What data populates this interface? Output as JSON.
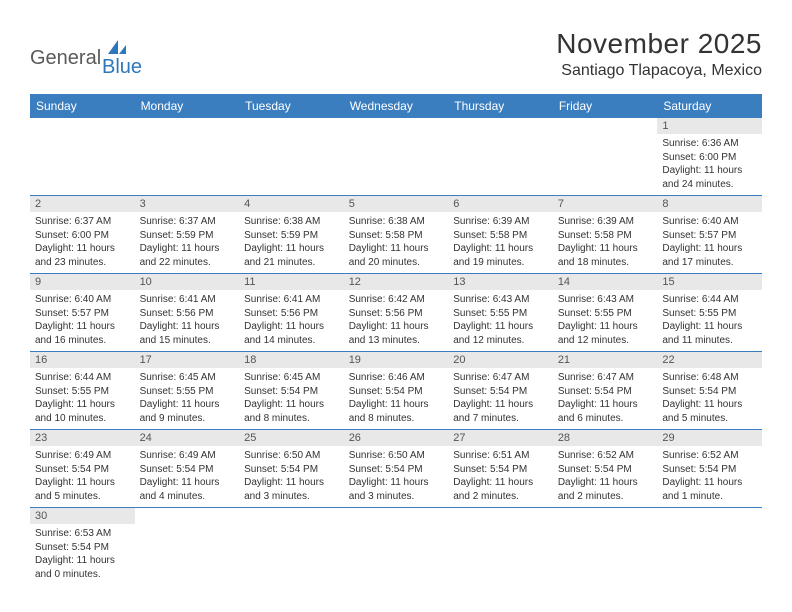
{
  "logo": {
    "text1": "General",
    "text2": "Blue"
  },
  "title": "November 2025",
  "location": "Santiago Tlapacoya, Mexico",
  "colors": {
    "header_bg": "#3a7ebf",
    "header_text": "#ffffff",
    "daynum_bg": "#e8e8e8",
    "daynum_text": "#555555",
    "cell_border": "#3a7ebf",
    "body_text": "#333333",
    "logo_gray": "#5a5a5a",
    "logo_blue": "#2f77bb",
    "background": "#ffffff"
  },
  "typography": {
    "title_fontsize": 28,
    "location_fontsize": 16,
    "dayheader_fontsize": 12,
    "daynum_fontsize": 11,
    "cell_fontsize": 10,
    "logo_fontsize": 20
  },
  "day_headers": [
    "Sunday",
    "Monday",
    "Tuesday",
    "Wednesday",
    "Thursday",
    "Friday",
    "Saturday"
  ],
  "weeks": [
    [
      {
        "empty": true
      },
      {
        "empty": true
      },
      {
        "empty": true
      },
      {
        "empty": true
      },
      {
        "empty": true
      },
      {
        "empty": true
      },
      {
        "day": "1",
        "sunrise": "Sunrise: 6:36 AM",
        "sunset": "Sunset: 6:00 PM",
        "daylight": "Daylight: 11 hours and 24 minutes."
      }
    ],
    [
      {
        "day": "2",
        "sunrise": "Sunrise: 6:37 AM",
        "sunset": "Sunset: 6:00 PM",
        "daylight": "Daylight: 11 hours and 23 minutes."
      },
      {
        "day": "3",
        "sunrise": "Sunrise: 6:37 AM",
        "sunset": "Sunset: 5:59 PM",
        "daylight": "Daylight: 11 hours and 22 minutes."
      },
      {
        "day": "4",
        "sunrise": "Sunrise: 6:38 AM",
        "sunset": "Sunset: 5:59 PM",
        "daylight": "Daylight: 11 hours and 21 minutes."
      },
      {
        "day": "5",
        "sunrise": "Sunrise: 6:38 AM",
        "sunset": "Sunset: 5:58 PM",
        "daylight": "Daylight: 11 hours and 20 minutes."
      },
      {
        "day": "6",
        "sunrise": "Sunrise: 6:39 AM",
        "sunset": "Sunset: 5:58 PM",
        "daylight": "Daylight: 11 hours and 19 minutes."
      },
      {
        "day": "7",
        "sunrise": "Sunrise: 6:39 AM",
        "sunset": "Sunset: 5:58 PM",
        "daylight": "Daylight: 11 hours and 18 minutes."
      },
      {
        "day": "8",
        "sunrise": "Sunrise: 6:40 AM",
        "sunset": "Sunset: 5:57 PM",
        "daylight": "Daylight: 11 hours and 17 minutes."
      }
    ],
    [
      {
        "day": "9",
        "sunrise": "Sunrise: 6:40 AM",
        "sunset": "Sunset: 5:57 PM",
        "daylight": "Daylight: 11 hours and 16 minutes."
      },
      {
        "day": "10",
        "sunrise": "Sunrise: 6:41 AM",
        "sunset": "Sunset: 5:56 PM",
        "daylight": "Daylight: 11 hours and 15 minutes."
      },
      {
        "day": "11",
        "sunrise": "Sunrise: 6:41 AM",
        "sunset": "Sunset: 5:56 PM",
        "daylight": "Daylight: 11 hours and 14 minutes."
      },
      {
        "day": "12",
        "sunrise": "Sunrise: 6:42 AM",
        "sunset": "Sunset: 5:56 PM",
        "daylight": "Daylight: 11 hours and 13 minutes."
      },
      {
        "day": "13",
        "sunrise": "Sunrise: 6:43 AM",
        "sunset": "Sunset: 5:55 PM",
        "daylight": "Daylight: 11 hours and 12 minutes."
      },
      {
        "day": "14",
        "sunrise": "Sunrise: 6:43 AM",
        "sunset": "Sunset: 5:55 PM",
        "daylight": "Daylight: 11 hours and 12 minutes."
      },
      {
        "day": "15",
        "sunrise": "Sunrise: 6:44 AM",
        "sunset": "Sunset: 5:55 PM",
        "daylight": "Daylight: 11 hours and 11 minutes."
      }
    ],
    [
      {
        "day": "16",
        "sunrise": "Sunrise: 6:44 AM",
        "sunset": "Sunset: 5:55 PM",
        "daylight": "Daylight: 11 hours and 10 minutes."
      },
      {
        "day": "17",
        "sunrise": "Sunrise: 6:45 AM",
        "sunset": "Sunset: 5:55 PM",
        "daylight": "Daylight: 11 hours and 9 minutes."
      },
      {
        "day": "18",
        "sunrise": "Sunrise: 6:45 AM",
        "sunset": "Sunset: 5:54 PM",
        "daylight": "Daylight: 11 hours and 8 minutes."
      },
      {
        "day": "19",
        "sunrise": "Sunrise: 6:46 AM",
        "sunset": "Sunset: 5:54 PM",
        "daylight": "Daylight: 11 hours and 8 minutes."
      },
      {
        "day": "20",
        "sunrise": "Sunrise: 6:47 AM",
        "sunset": "Sunset: 5:54 PM",
        "daylight": "Daylight: 11 hours and 7 minutes."
      },
      {
        "day": "21",
        "sunrise": "Sunrise: 6:47 AM",
        "sunset": "Sunset: 5:54 PM",
        "daylight": "Daylight: 11 hours and 6 minutes."
      },
      {
        "day": "22",
        "sunrise": "Sunrise: 6:48 AM",
        "sunset": "Sunset: 5:54 PM",
        "daylight": "Daylight: 11 hours and 5 minutes."
      }
    ],
    [
      {
        "day": "23",
        "sunrise": "Sunrise: 6:49 AM",
        "sunset": "Sunset: 5:54 PM",
        "daylight": "Daylight: 11 hours and 5 minutes."
      },
      {
        "day": "24",
        "sunrise": "Sunrise: 6:49 AM",
        "sunset": "Sunset: 5:54 PM",
        "daylight": "Daylight: 11 hours and 4 minutes."
      },
      {
        "day": "25",
        "sunrise": "Sunrise: 6:50 AM",
        "sunset": "Sunset: 5:54 PM",
        "daylight": "Daylight: 11 hours and 3 minutes."
      },
      {
        "day": "26",
        "sunrise": "Sunrise: 6:50 AM",
        "sunset": "Sunset: 5:54 PM",
        "daylight": "Daylight: 11 hours and 3 minutes."
      },
      {
        "day": "27",
        "sunrise": "Sunrise: 6:51 AM",
        "sunset": "Sunset: 5:54 PM",
        "daylight": "Daylight: 11 hours and 2 minutes."
      },
      {
        "day": "28",
        "sunrise": "Sunrise: 6:52 AM",
        "sunset": "Sunset: 5:54 PM",
        "daylight": "Daylight: 11 hours and 2 minutes."
      },
      {
        "day": "29",
        "sunrise": "Sunrise: 6:52 AM",
        "sunset": "Sunset: 5:54 PM",
        "daylight": "Daylight: 11 hours and 1 minute."
      }
    ],
    [
      {
        "day": "30",
        "sunrise": "Sunrise: 6:53 AM",
        "sunset": "Sunset: 5:54 PM",
        "daylight": "Daylight: 11 hours and 0 minutes."
      },
      {
        "empty": true
      },
      {
        "empty": true
      },
      {
        "empty": true
      },
      {
        "empty": true
      },
      {
        "empty": true
      },
      {
        "empty": true
      }
    ]
  ]
}
